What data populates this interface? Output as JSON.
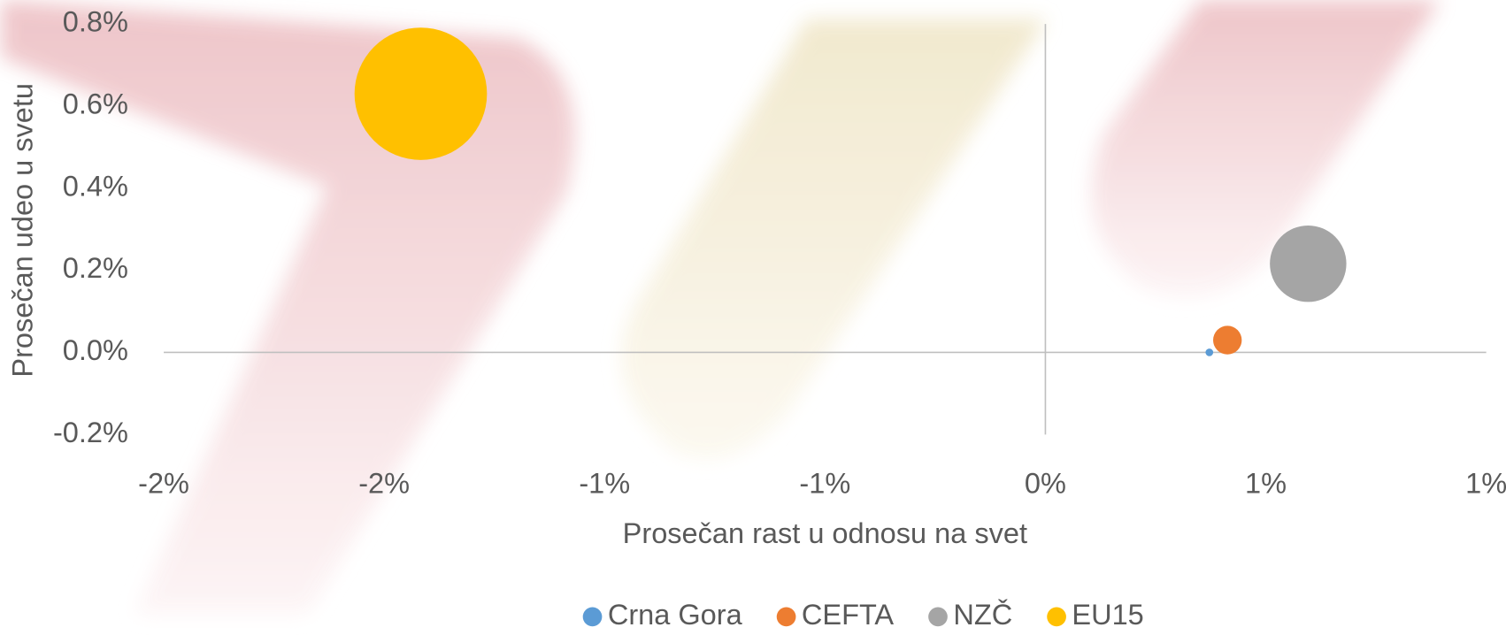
{
  "chart_data": {
    "type": "bubble",
    "xlabel": "Prosečan rast u odnosu na svet",
    "ylabel": "Prosečan udeo u svetu",
    "series": [
      {
        "name": "Crna Gora",
        "color": "#5b9bd5",
        "x": [
          0.372
        ],
        "values": [
          0.0
        ],
        "sizes": [
          1
        ]
      },
      {
        "name": "CEFTA",
        "color": "#ed7d31",
        "x": [
          0.413
        ],
        "values": [
          0.03
        ],
        "sizes": [
          14
        ]
      },
      {
        "name": "NZČ",
        "color": "#a5a5a5",
        "x": [
          0.596
        ],
        "values": [
          0.216
        ],
        "sizes": [
          100
        ]
      },
      {
        "name": "EU15",
        "color": "#ffc000",
        "x": [
          -1.417
        ],
        "values": [
          0.63
        ],
        "sizes": [
          300
        ]
      }
    ],
    "xlim": [
      -2,
      1
    ],
    "xticks": [
      {
        "value": -2,
        "label": "-2%"
      },
      {
        "value": -1.5,
        "label": "-2%"
      },
      {
        "value": -1,
        "label": "-1%"
      },
      {
        "value": -0.5,
        "label": "-1%"
      },
      {
        "value": 0,
        "label": "0%"
      },
      {
        "value": 0.5,
        "label": "1%"
      },
      {
        "value": 1,
        "label": "1%"
      }
    ],
    "ylim": [
      -0.2,
      0.8
    ],
    "yticks": [
      {
        "value": -0.2,
        "label": "-0.2%"
      },
      {
        "value": 0,
        "label": "0.0%"
      },
      {
        "value": 0.2,
        "label": "0.2%"
      },
      {
        "value": 0.4,
        "label": "0.4%"
      },
      {
        "value": 0.6,
        "label": "0.6%"
      },
      {
        "value": 0.8,
        "label": "0.8%"
      }
    ],
    "legend": "bottom"
  }
}
